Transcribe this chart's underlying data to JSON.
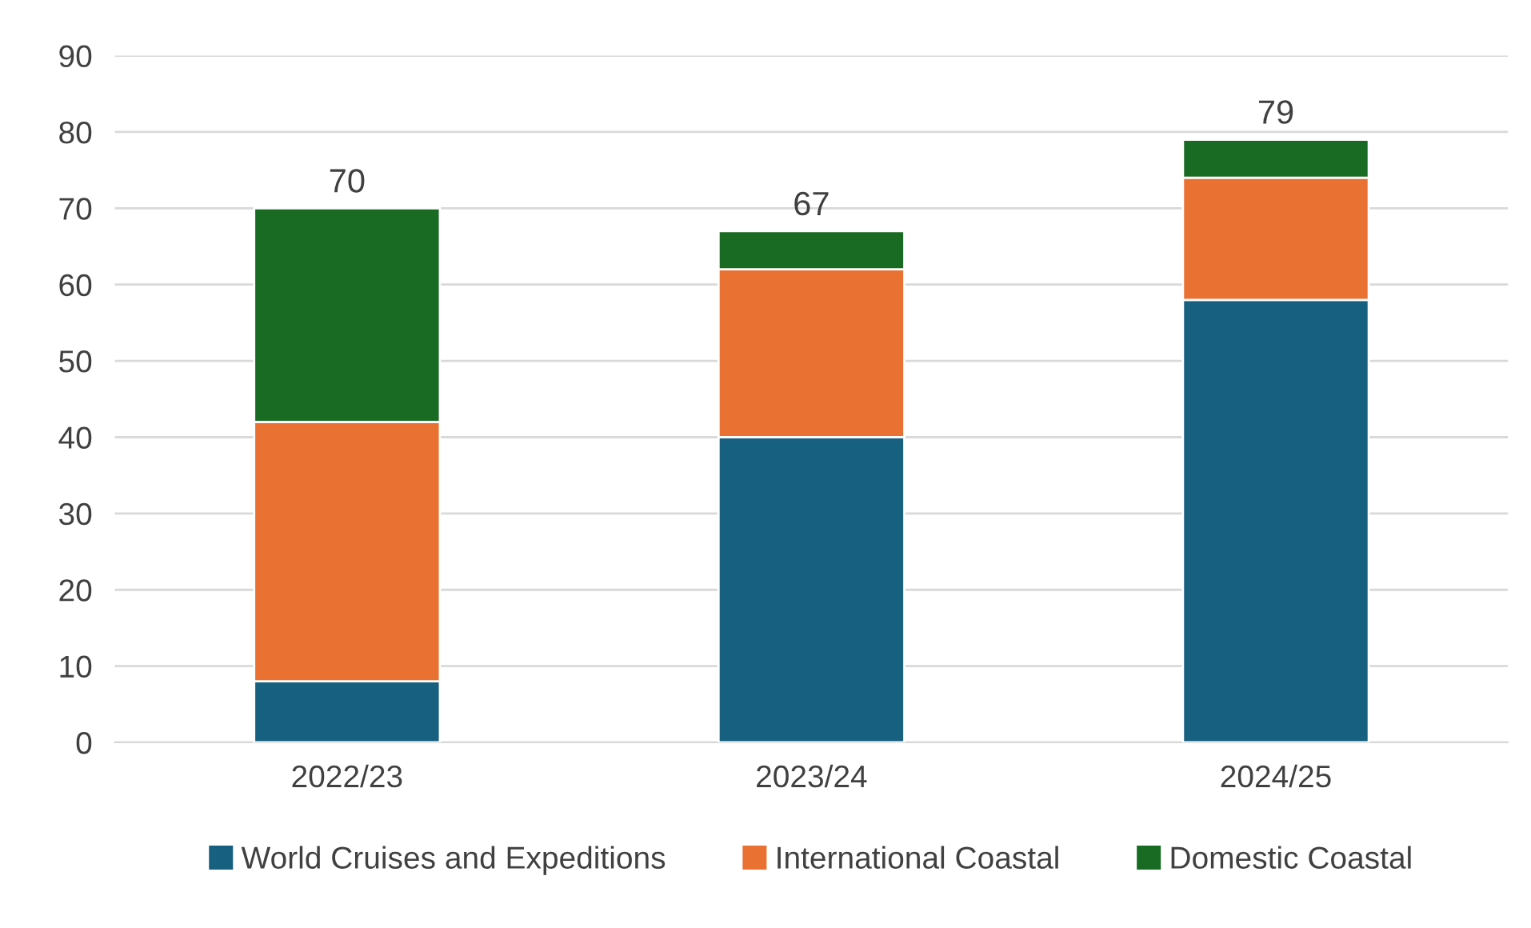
{
  "chart_data": {
    "type": "bar",
    "stacked": true,
    "categories": [
      "2022/23",
      "2023/24",
      "2024/25"
    ],
    "series": [
      {
        "name": "World Cruises and Expeditions",
        "color": "#17607f",
        "values": [
          8,
          40,
          58
        ]
      },
      {
        "name": "International Coastal",
        "color": "#e97132",
        "values": [
          34,
          22,
          16
        ]
      },
      {
        "name": "Domestic Coastal",
        "color": "#196b24",
        "values": [
          28,
          5,
          5
        ]
      }
    ],
    "totals": [
      "70",
      "67",
      "79"
    ],
    "ylim": [
      0,
      90
    ],
    "yticks": [
      0,
      10,
      20,
      30,
      40,
      50,
      60,
      70,
      80,
      90
    ],
    "grid": "y",
    "legend": "bottom"
  }
}
